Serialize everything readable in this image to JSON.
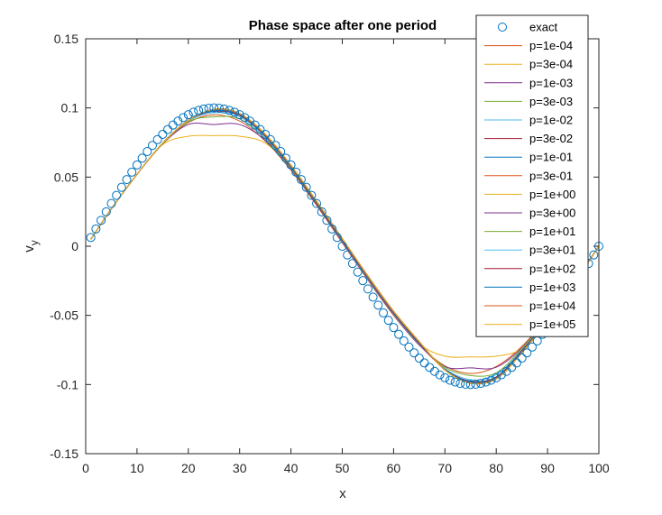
{
  "chart_data": {
    "type": "line",
    "title": "Phase space after one period",
    "xlabel": "x",
    "ylabel": "v_y",
    "xlim": [
      0,
      100
    ],
    "ylim": [
      -0.15,
      0.15
    ],
    "xticks": [
      0,
      10,
      20,
      30,
      40,
      50,
      60,
      70,
      80,
      90,
      100
    ],
    "xtick_labels": [
      "0",
      "10",
      "20",
      "30",
      "40",
      "50",
      "60",
      "70",
      "80",
      "90",
      "100"
    ],
    "yticks": [
      0.15,
      0.1,
      0.05,
      0,
      -0.05,
      -0.1,
      -0.15
    ],
    "ytick_labels": [
      "0.15",
      "0.1",
      "0.05",
      "0",
      "-0.05",
      "-0.1",
      "-0.15"
    ],
    "grid": false,
    "legend_position": "top-right",
    "exact": {
      "name": "exact",
      "marker": "circle",
      "color": "#0072BD",
      "x": [
        1,
        2,
        3,
        4,
        5,
        6,
        7,
        8,
        9,
        10,
        11,
        12,
        13,
        14,
        15,
        16,
        17,
        18,
        19,
        20,
        21,
        22,
        23,
        24,
        25,
        26,
        27,
        28,
        29,
        30,
        31,
        32,
        33,
        34,
        35,
        36,
        37,
        38,
        39,
        40,
        41,
        42,
        43,
        44,
        45,
        46,
        47,
        48,
        49,
        50,
        51,
        52,
        53,
        54,
        55,
        56,
        57,
        58,
        59,
        60,
        61,
        62,
        63,
        64,
        65,
        66,
        67,
        68,
        69,
        70,
        71,
        72,
        73,
        74,
        75,
        76,
        77,
        78,
        79,
        80,
        81,
        82,
        83,
        84,
        85,
        86,
        87,
        88,
        89,
        90,
        91,
        92,
        93,
        94,
        95,
        96,
        97,
        98,
        99,
        100
      ],
      "y": [
        0.0063,
        0.0125,
        0.0187,
        0.0249,
        0.0309,
        0.0368,
        0.0426,
        0.0482,
        0.0536,
        0.0588,
        0.0637,
        0.0685,
        0.0729,
        0.0771,
        0.0809,
        0.0844,
        0.0876,
        0.0905,
        0.093,
        0.0951,
        0.0969,
        0.0982,
        0.0992,
        0.0998,
        0.1,
        0.0998,
        0.0992,
        0.0982,
        0.0969,
        0.0951,
        0.093,
        0.0905,
        0.0876,
        0.0844,
        0.0809,
        0.0771,
        0.0729,
        0.0685,
        0.0637,
        0.0588,
        0.0536,
        0.0482,
        0.0426,
        0.0368,
        0.0309,
        0.0249,
        0.0187,
        0.0125,
        0.0063,
        0.0,
        -0.0063,
        -0.0125,
        -0.0187,
        -0.0249,
        -0.0309,
        -0.0368,
        -0.0426,
        -0.0482,
        -0.0536,
        -0.0588,
        -0.0637,
        -0.0685,
        -0.0729,
        -0.0771,
        -0.0809,
        -0.0844,
        -0.0876,
        -0.0905,
        -0.093,
        -0.0951,
        -0.0969,
        -0.0982,
        -0.0992,
        -0.0998,
        -0.1,
        -0.0998,
        -0.0992,
        -0.0982,
        -0.0969,
        -0.0951,
        -0.093,
        -0.0905,
        -0.0876,
        -0.0844,
        -0.0809,
        -0.0771,
        -0.0729,
        -0.0685,
        -0.0637,
        -0.0588,
        -0.0536,
        -0.0482,
        -0.0426,
        -0.0368,
        -0.0309,
        -0.0249,
        -0.0187,
        -0.0125,
        -0.0063,
        0.0
      ]
    },
    "series": [
      {
        "name": "p=1e-04",
        "color": "#D95319",
        "x": [
          1,
          5,
          10,
          15,
          20,
          25,
          30,
          35,
          40,
          45,
          50,
          55,
          60,
          65,
          70,
          75,
          80,
          85,
          90,
          95,
          100
        ],
        "y": [
          0.005,
          0.027,
          0.052,
          0.074,
          0.0895,
          0.095,
          0.0905,
          0.076,
          0.055,
          0.0295,
          0.0025,
          -0.0245,
          -0.05,
          -0.0715,
          -0.0865,
          -0.092,
          -0.087,
          -0.0725,
          -0.051,
          -0.0265,
          0.0
        ]
      },
      {
        "name": "p=3e-04",
        "color": "#EDB120",
        "x": [
          1,
          5,
          10,
          15,
          20,
          25,
          30,
          35,
          40,
          45,
          50,
          55,
          60,
          65,
          70,
          75,
          80,
          85,
          90,
          95,
          100
        ],
        "y": [
          0.005,
          0.027,
          0.052,
          0.0735,
          0.0795,
          0.08,
          0.0795,
          0.0745,
          0.057,
          0.032,
          0.005,
          -0.022,
          -0.048,
          -0.0705,
          -0.0795,
          -0.08,
          -0.0795,
          -0.074,
          -0.0535,
          -0.028,
          0.0
        ]
      },
      {
        "name": "p=1e-03",
        "color": "#7E2F8E",
        "x": [
          1,
          5,
          10,
          15,
          20,
          25,
          30,
          35,
          40,
          45,
          50,
          55,
          60,
          65,
          70,
          75,
          80,
          85,
          90,
          95,
          100
        ],
        "y": [
          0.005,
          0.027,
          0.052,
          0.074,
          0.088,
          0.088,
          0.088,
          0.0765,
          0.0555,
          0.03,
          0.003,
          -0.024,
          -0.0495,
          -0.0715,
          -0.087,
          -0.088,
          -0.0875,
          -0.0735,
          -0.0515,
          -0.0265,
          0.0
        ]
      },
      {
        "name": "p=3e-03",
        "color": "#77AC30",
        "x": [
          1,
          5,
          10,
          15,
          20,
          25,
          30,
          35,
          40,
          45,
          50,
          55,
          60,
          65,
          70,
          75,
          80,
          85,
          90,
          95,
          100
        ],
        "y": [
          0.005,
          0.027,
          0.052,
          0.074,
          0.09,
          0.0935,
          0.092,
          0.0775,
          0.056,
          0.0305,
          0.0035,
          -0.0235,
          -0.049,
          -0.071,
          -0.0875,
          -0.0935,
          -0.0915,
          -0.074,
          -0.052,
          -0.027,
          0.0
        ]
      },
      {
        "name": "p=1e-02",
        "color": "#4DBEEE",
        "x": [
          1,
          5,
          10,
          15,
          20,
          25,
          30,
          35,
          40,
          45,
          50,
          55,
          60,
          65,
          70,
          75,
          80,
          85,
          90,
          95,
          100
        ],
        "y": [
          0.005,
          0.027,
          0.052,
          0.0745,
          0.0905,
          0.0965,
          0.0935,
          0.0785,
          0.0565,
          0.031,
          0.0035,
          -0.0235,
          -0.049,
          -0.071,
          -0.0885,
          -0.0965,
          -0.093,
          -0.075,
          -0.0525,
          -0.027,
          0.0
        ]
      },
      {
        "name": "p=3e-02",
        "color": "#A2142F",
        "x": [
          1,
          5,
          10,
          15,
          20,
          25,
          30,
          35,
          40,
          45,
          50,
          55,
          60,
          65,
          70,
          75,
          80,
          85,
          90,
          95,
          100
        ],
        "y": [
          0.005,
          0.027,
          0.052,
          0.0745,
          0.091,
          0.0975,
          0.0945,
          0.0795,
          0.057,
          0.031,
          0.004,
          -0.023,
          -0.0485,
          -0.0705,
          -0.089,
          -0.0975,
          -0.0945,
          -0.0755,
          -0.053,
          -0.0275,
          0.0
        ]
      },
      {
        "name": "p=1e-01",
        "color": "#0072BD",
        "x": [
          1,
          5,
          10,
          15,
          20,
          25,
          30,
          35,
          40,
          45,
          50,
          55,
          60,
          65,
          70,
          75,
          80,
          85,
          90,
          95,
          100
        ],
        "y": [
          0.005,
          0.027,
          0.052,
          0.0745,
          0.091,
          0.098,
          0.095,
          0.08,
          0.0575,
          0.0315,
          0.0045,
          -0.0225,
          -0.048,
          -0.07,
          -0.089,
          -0.098,
          -0.095,
          -0.076,
          -0.053,
          -0.0275,
          0.0
        ]
      },
      {
        "name": "p=3e-01",
        "color": "#D95319",
        "x": [
          1,
          5,
          10,
          15,
          20,
          25,
          30,
          35,
          40,
          45,
          50,
          55,
          60,
          65,
          70,
          75,
          80,
          85,
          90,
          95,
          100
        ],
        "y": [
          0.005,
          0.027,
          0.052,
          0.0745,
          0.091,
          0.0985,
          0.0955,
          0.0805,
          0.058,
          0.032,
          0.005,
          -0.022,
          -0.0475,
          -0.0695,
          -0.0895,
          -0.0985,
          -0.0955,
          -0.0765,
          -0.0535,
          -0.028,
          0.0
        ]
      },
      {
        "name": "p=1e+00",
        "color": "#EDB120",
        "x": [
          1,
          5,
          10,
          15,
          20,
          25,
          30,
          35,
          40,
          45,
          50,
          55,
          60,
          65,
          70,
          75,
          80,
          85,
          90,
          95,
          100
        ],
        "y": [
          0.005,
          0.027,
          0.052,
          0.0745,
          0.091,
          0.099,
          0.096,
          0.081,
          0.0585,
          0.0325,
          0.0055,
          -0.0215,
          -0.047,
          -0.069,
          -0.0895,
          -0.099,
          -0.096,
          -0.077,
          -0.054,
          -0.028,
          0.0
        ]
      },
      {
        "name": "p=3e+00",
        "color": "#7E2F8E",
        "x": [
          1,
          5,
          10,
          15,
          20,
          25,
          30,
          35,
          40,
          45,
          50,
          55,
          60,
          65,
          70,
          75,
          80,
          85,
          90,
          95,
          100
        ],
        "y": [
          0.005,
          0.027,
          0.052,
          0.0745,
          0.091,
          0.099,
          0.096,
          0.081,
          0.0585,
          0.0325,
          0.0055,
          -0.0215,
          -0.047,
          -0.069,
          -0.0895,
          -0.099,
          -0.096,
          -0.077,
          -0.054,
          -0.028,
          0.0
        ]
      },
      {
        "name": "p=1e+01",
        "color": "#77AC30",
        "x": [
          1,
          5,
          10,
          15,
          20,
          25,
          30,
          35,
          40,
          45,
          50,
          55,
          60,
          65,
          70,
          75,
          80,
          85,
          90,
          95,
          100
        ],
        "y": [
          0.005,
          0.027,
          0.052,
          0.0745,
          0.091,
          0.099,
          0.096,
          0.081,
          0.0585,
          0.0325,
          0.0055,
          -0.0215,
          -0.047,
          -0.069,
          -0.0895,
          -0.099,
          -0.096,
          -0.077,
          -0.054,
          -0.028,
          0.0
        ]
      },
      {
        "name": "p=3e+01",
        "color": "#4DBEEE",
        "x": [
          1,
          5,
          10,
          15,
          20,
          25,
          30,
          35,
          40,
          45,
          50,
          55,
          60,
          65,
          70,
          75,
          80,
          85,
          90,
          95,
          100
        ],
        "y": [
          0.005,
          0.027,
          0.052,
          0.0745,
          0.091,
          0.099,
          0.096,
          0.081,
          0.0585,
          0.0325,
          0.0055,
          -0.0215,
          -0.047,
          -0.069,
          -0.0895,
          -0.099,
          -0.096,
          -0.077,
          -0.054,
          -0.028,
          0.0
        ]
      },
      {
        "name": "p=1e+02",
        "color": "#A2142F",
        "x": [
          1,
          5,
          10,
          15,
          20,
          25,
          30,
          35,
          40,
          45,
          50,
          55,
          60,
          65,
          70,
          75,
          80,
          85,
          90,
          95,
          100
        ],
        "y": [
          0.005,
          0.027,
          0.052,
          0.0745,
          0.091,
          0.099,
          0.096,
          0.081,
          0.0585,
          0.0325,
          0.0055,
          -0.0215,
          -0.047,
          -0.069,
          -0.0895,
          -0.099,
          -0.096,
          -0.077,
          -0.054,
          -0.028,
          0.0
        ]
      },
      {
        "name": "p=1e+03",
        "color": "#0072BD",
        "x": [
          1,
          5,
          10,
          15,
          20,
          25,
          30,
          35,
          40,
          45,
          50,
          55,
          60,
          65,
          70,
          75,
          80,
          85,
          90,
          95,
          100
        ],
        "y": [
          0.005,
          0.027,
          0.052,
          0.0745,
          0.091,
          0.099,
          0.096,
          0.081,
          0.0585,
          0.0325,
          0.0055,
          -0.0215,
          -0.047,
          -0.069,
          -0.0895,
          -0.099,
          -0.096,
          -0.077,
          -0.054,
          -0.028,
          0.0
        ]
      },
      {
        "name": "p=1e+04",
        "color": "#D95319",
        "x": [
          1,
          5,
          10,
          15,
          20,
          25,
          30,
          35,
          40,
          45,
          50,
          55,
          60,
          65,
          70,
          75,
          80,
          85,
          90,
          95,
          100
        ],
        "y": [
          0.005,
          0.027,
          0.052,
          0.0745,
          0.091,
          0.099,
          0.096,
          0.081,
          0.0585,
          0.0325,
          0.0055,
          -0.0215,
          -0.047,
          -0.069,
          -0.0895,
          -0.099,
          -0.096,
          -0.077,
          -0.054,
          -0.028,
          0.0
        ]
      },
      {
        "name": "p=1e+05",
        "color": "#EDB120",
        "x": [
          1,
          5,
          10,
          15,
          20,
          25,
          30,
          35,
          40,
          45,
          50,
          55,
          60,
          65,
          70,
          75,
          80,
          85,
          90,
          95,
          100
        ],
        "y": [
          0.005,
          0.027,
          0.052,
          0.0745,
          0.091,
          0.099,
          0.096,
          0.081,
          0.0585,
          0.0325,
          0.0055,
          -0.0215,
          -0.047,
          -0.069,
          -0.0895,
          -0.099,
          -0.096,
          -0.077,
          -0.054,
          -0.028,
          0.0
        ]
      }
    ]
  }
}
